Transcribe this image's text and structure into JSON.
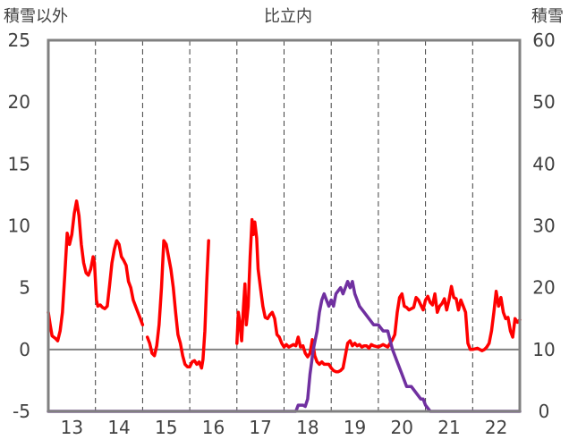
{
  "chart_data": {
    "type": "line",
    "title": "比立内",
    "ylabel_left": "積雪以外",
    "ylabel_right": "積雪",
    "ylim_left": [
      -5,
      25
    ],
    "ylim_right": [
      0,
      60
    ],
    "yticks_left": [
      25,
      20,
      15,
      10,
      5,
      0,
      -5
    ],
    "yticks_right": [
      60,
      50,
      40,
      30,
      20,
      10,
      0
    ],
    "xlim": [
      12.5,
      22.5
    ],
    "xticks": [
      "13",
      "14",
      "15",
      "16",
      "17",
      "18",
      "19",
      "20",
      "21",
      "22"
    ],
    "xtick_values": [
      13,
      14,
      15,
      16,
      17,
      18,
      19,
      20,
      21,
      22
    ],
    "grid": {
      "vertical_dashed_at_day_start": true,
      "zero_line": true
    },
    "colors": {
      "temperature": "#ff0000",
      "snow_depth": "#7030a0",
      "axis": "#808080"
    },
    "series": [
      {
        "axis": "left",
        "color": "#ff0000",
        "segments": [
          [
            [
              12.5,
              3.0
            ],
            [
              12.54,
              2.0
            ],
            [
              12.58,
              1.1
            ],
            [
              12.65,
              0.9
            ],
            [
              12.7,
              0.7
            ],
            [
              12.75,
              1.5
            ],
            [
              12.8,
              3.0
            ],
            [
              12.85,
              6.0
            ],
            [
              12.9,
              9.4
            ],
            [
              12.95,
              8.5
            ],
            [
              13.0,
              9.3
            ],
            [
              13.05,
              11.0
            ],
            [
              13.1,
              12.0
            ],
            [
              13.15,
              10.8
            ],
            [
              13.2,
              8.5
            ],
            [
              13.25,
              7.0
            ],
            [
              13.3,
              6.2
            ],
            [
              13.35,
              6.0
            ],
            [
              13.4,
              6.5
            ],
            [
              13.45,
              7.5
            ],
            [
              13.48,
              7.0
            ],
            [
              13.52,
              4.0
            ],
            [
              13.55,
              3.5
            ],
            [
              13.6,
              3.6
            ],
            [
              13.65,
              3.4
            ],
            [
              13.7,
              3.3
            ],
            [
              13.75,
              3.5
            ],
            [
              13.8,
              5.2
            ],
            [
              13.85,
              7.0
            ],
            [
              13.9,
              8.1
            ],
            [
              13.95,
              8.8
            ],
            [
              14.0,
              8.5
            ],
            [
              14.05,
              7.5
            ],
            [
              14.1,
              7.2
            ],
            [
              14.15,
              6.8
            ],
            [
              14.2,
              5.5
            ],
            [
              14.25,
              5.0
            ],
            [
              14.3,
              4.0
            ],
            [
              14.35,
              3.5
            ],
            [
              14.4,
              3.0
            ],
            [
              14.45,
              2.5
            ],
            [
              14.5,
              2.0
            ]
          ],
          [
            [
              14.6,
              1.0
            ],
            [
              14.65,
              0.5
            ],
            [
              14.7,
              -0.3
            ],
            [
              14.75,
              -0.5
            ],
            [
              14.8,
              0.3
            ],
            [
              14.85,
              2.0
            ],
            [
              14.9,
              5.0
            ],
            [
              14.95,
              8.8
            ],
            [
              15.0,
              8.5
            ],
            [
              15.05,
              7.5
            ],
            [
              15.1,
              6.5
            ],
            [
              15.15,
              5.0
            ],
            [
              15.2,
              3.0
            ],
            [
              15.25,
              1.2
            ],
            [
              15.3,
              0.5
            ],
            [
              15.35,
              -0.5
            ],
            [
              15.4,
              -1.2
            ],
            [
              15.45,
              -1.4
            ],
            [
              15.5,
              -1.4
            ],
            [
              15.55,
              -1.0
            ],
            [
              15.6,
              -0.9
            ],
            [
              15.65,
              -1.2
            ],
            [
              15.7,
              -1.0
            ],
            [
              15.75,
              -1.5
            ],
            [
              15.78,
              -0.8
            ],
            [
              15.82,
              1.5
            ],
            [
              15.86,
              5.5
            ],
            [
              15.9,
              8.8
            ]
          ],
          [
            [
              16.5,
              0.5
            ],
            [
              16.53,
              3.0
            ],
            [
              16.56,
              2.2
            ],
            [
              16.6,
              0.7
            ],
            [
              16.64,
              3.5
            ],
            [
              16.67,
              5.3
            ],
            [
              16.7,
              2.0
            ],
            [
              16.74,
              3.5
            ],
            [
              16.78,
              7.5
            ],
            [
              16.82,
              10.5
            ],
            [
              16.85,
              9.3
            ],
            [
              16.88,
              10.3
            ],
            [
              16.92,
              9.0
            ],
            [
              16.95,
              6.5
            ],
            [
              17.0,
              5.0
            ],
            [
              17.05,
              3.5
            ],
            [
              17.1,
              2.6
            ],
            [
              17.15,
              2.5
            ],
            [
              17.2,
              2.8
            ],
            [
              17.25,
              3.0
            ],
            [
              17.3,
              2.5
            ],
            [
              17.35,
              1.2
            ],
            [
              17.4,
              1.0
            ],
            [
              17.45,
              0.5
            ],
            [
              17.5,
              0.2
            ],
            [
              17.55,
              0.4
            ],
            [
              17.6,
              0.2
            ],
            [
              17.65,
              0.3
            ],
            [
              17.7,
              0.4
            ],
            [
              17.75,
              0.3
            ],
            [
              17.8,
              1.0
            ],
            [
              17.85,
              0.2
            ],
            [
              17.9,
              0.3
            ],
            [
              17.95,
              -0.3
            ],
            [
              18.0,
              -0.6
            ],
            [
              18.05,
              -0.3
            ],
            [
              18.1,
              0.8
            ],
            [
              18.15,
              -0.5
            ],
            [
              18.2,
              -1.0
            ],
            [
              18.25,
              -1.2
            ],
            [
              18.3,
              -1.0
            ],
            [
              18.35,
              -1.2
            ],
            [
              18.4,
              -1.2
            ],
            [
              18.45,
              -1.2
            ],
            [
              18.5,
              -1.5
            ],
            [
              18.55,
              -1.7
            ],
            [
              18.6,
              -1.8
            ],
            [
              18.65,
              -1.8
            ],
            [
              18.7,
              -1.7
            ],
            [
              18.75,
              -1.5
            ],
            [
              18.8,
              -0.5
            ],
            [
              18.85,
              0.5
            ],
            [
              18.9,
              0.7
            ],
            [
              18.95,
              0.3
            ],
            [
              19.0,
              0.5
            ],
            [
              19.05,
              0.3
            ],
            [
              19.1,
              0.4
            ],
            [
              19.15,
              0.2
            ],
            [
              19.2,
              0.3
            ],
            [
              19.25,
              0.3
            ],
            [
              19.3,
              0.1
            ],
            [
              19.35,
              0.4
            ],
            [
              19.4,
              0.3
            ],
            [
              19.5,
              0.2
            ],
            [
              19.6,
              0.4
            ],
            [
              19.7,
              0.2
            ],
            [
              19.8,
              0.8
            ],
            [
              19.85,
              1.2
            ],
            [
              19.9,
              3.0
            ],
            [
              19.95,
              4.2
            ],
            [
              20.0,
              4.5
            ],
            [
              20.05,
              3.5
            ],
            [
              20.1,
              3.4
            ],
            [
              20.15,
              3.2
            ],
            [
              20.2,
              3.3
            ],
            [
              20.25,
              3.4
            ],
            [
              20.3,
              4.2
            ],
            [
              20.35,
              4.0
            ],
            [
              20.4,
              3.6
            ],
            [
              20.45,
              3.2
            ],
            [
              20.5,
              4.0
            ],
            [
              20.55,
              4.3
            ],
            [
              20.6,
              3.8
            ],
            [
              20.65,
              3.6
            ],
            [
              20.7,
              4.5
            ],
            [
              20.75,
              3.0
            ],
            [
              20.8,
              3.5
            ],
            [
              20.85,
              3.7
            ],
            [
              20.9,
              4.1
            ],
            [
              20.95,
              3.2
            ],
            [
              21.0,
              4.0
            ],
            [
              21.05,
              5.1
            ],
            [
              21.1,
              4.2
            ],
            [
              21.15,
              4.1
            ],
            [
              21.2,
              3.2
            ],
            [
              21.25,
              4.0
            ],
            [
              21.3,
              3.5
            ],
            [
              21.35,
              3.0
            ],
            [
              21.4,
              0.5
            ],
            [
              21.45,
              0.0
            ],
            [
              21.5,
              0.0
            ],
            [
              21.6,
              0.1
            ],
            [
              21.7,
              -0.1
            ],
            [
              21.75,
              0.0
            ],
            [
              21.8,
              0.2
            ],
            [
              21.85,
              0.5
            ],
            [
              21.9,
              1.5
            ],
            [
              21.95,
              3.0
            ],
            [
              22.0,
              4.7
            ],
            [
              22.05,
              3.5
            ],
            [
              22.1,
              4.2
            ],
            [
              22.15,
              3.0
            ],
            [
              22.2,
              2.5
            ],
            [
              22.25,
              2.6
            ],
            [
              22.3,
              1.5
            ],
            [
              22.35,
              1.0
            ],
            [
              22.4,
              2.5
            ],
            [
              22.45,
              2.2
            ],
            [
              22.5,
              2.4
            ]
          ]
        ]
      },
      {
        "axis": "right",
        "color": "#7030a0",
        "segments": [
          [
            [
              12.5,
              0
            ],
            [
              17.75,
              0
            ],
            [
              17.8,
              1
            ],
            [
              17.9,
              1
            ],
            [
              17.95,
              0.8
            ],
            [
              18.0,
              2
            ],
            [
              18.05,
              6
            ],
            [
              18.12,
              10
            ],
            [
              18.2,
              13
            ],
            [
              18.25,
              16
            ],
            [
              18.3,
              18
            ],
            [
              18.35,
              19
            ],
            [
              18.4,
              18
            ],
            [
              18.45,
              17
            ],
            [
              18.5,
              18
            ],
            [
              18.55,
              17
            ],
            [
              18.6,
              19
            ],
            [
              18.7,
              20
            ],
            [
              18.75,
              19
            ],
            [
              18.8,
              20
            ],
            [
              18.85,
              21
            ],
            [
              18.9,
              20
            ],
            [
              18.95,
              21
            ],
            [
              19.0,
              19
            ],
            [
              19.05,
              18
            ],
            [
              19.1,
              17
            ],
            [
              19.2,
              16
            ],
            [
              19.3,
              15
            ],
            [
              19.4,
              14
            ],
            [
              19.5,
              14
            ],
            [
              19.6,
              13
            ],
            [
              19.7,
              13
            ],
            [
              19.8,
              10
            ],
            [
              19.9,
              8
            ],
            [
              20.0,
              6
            ],
            [
              20.1,
              4
            ],
            [
              20.2,
              4
            ],
            [
              20.3,
              3
            ],
            [
              20.4,
              2
            ],
            [
              20.45,
              2
            ],
            [
              20.5,
              1
            ],
            [
              20.6,
              0
            ],
            [
              22.5,
              0
            ]
          ]
        ]
      }
    ]
  }
}
